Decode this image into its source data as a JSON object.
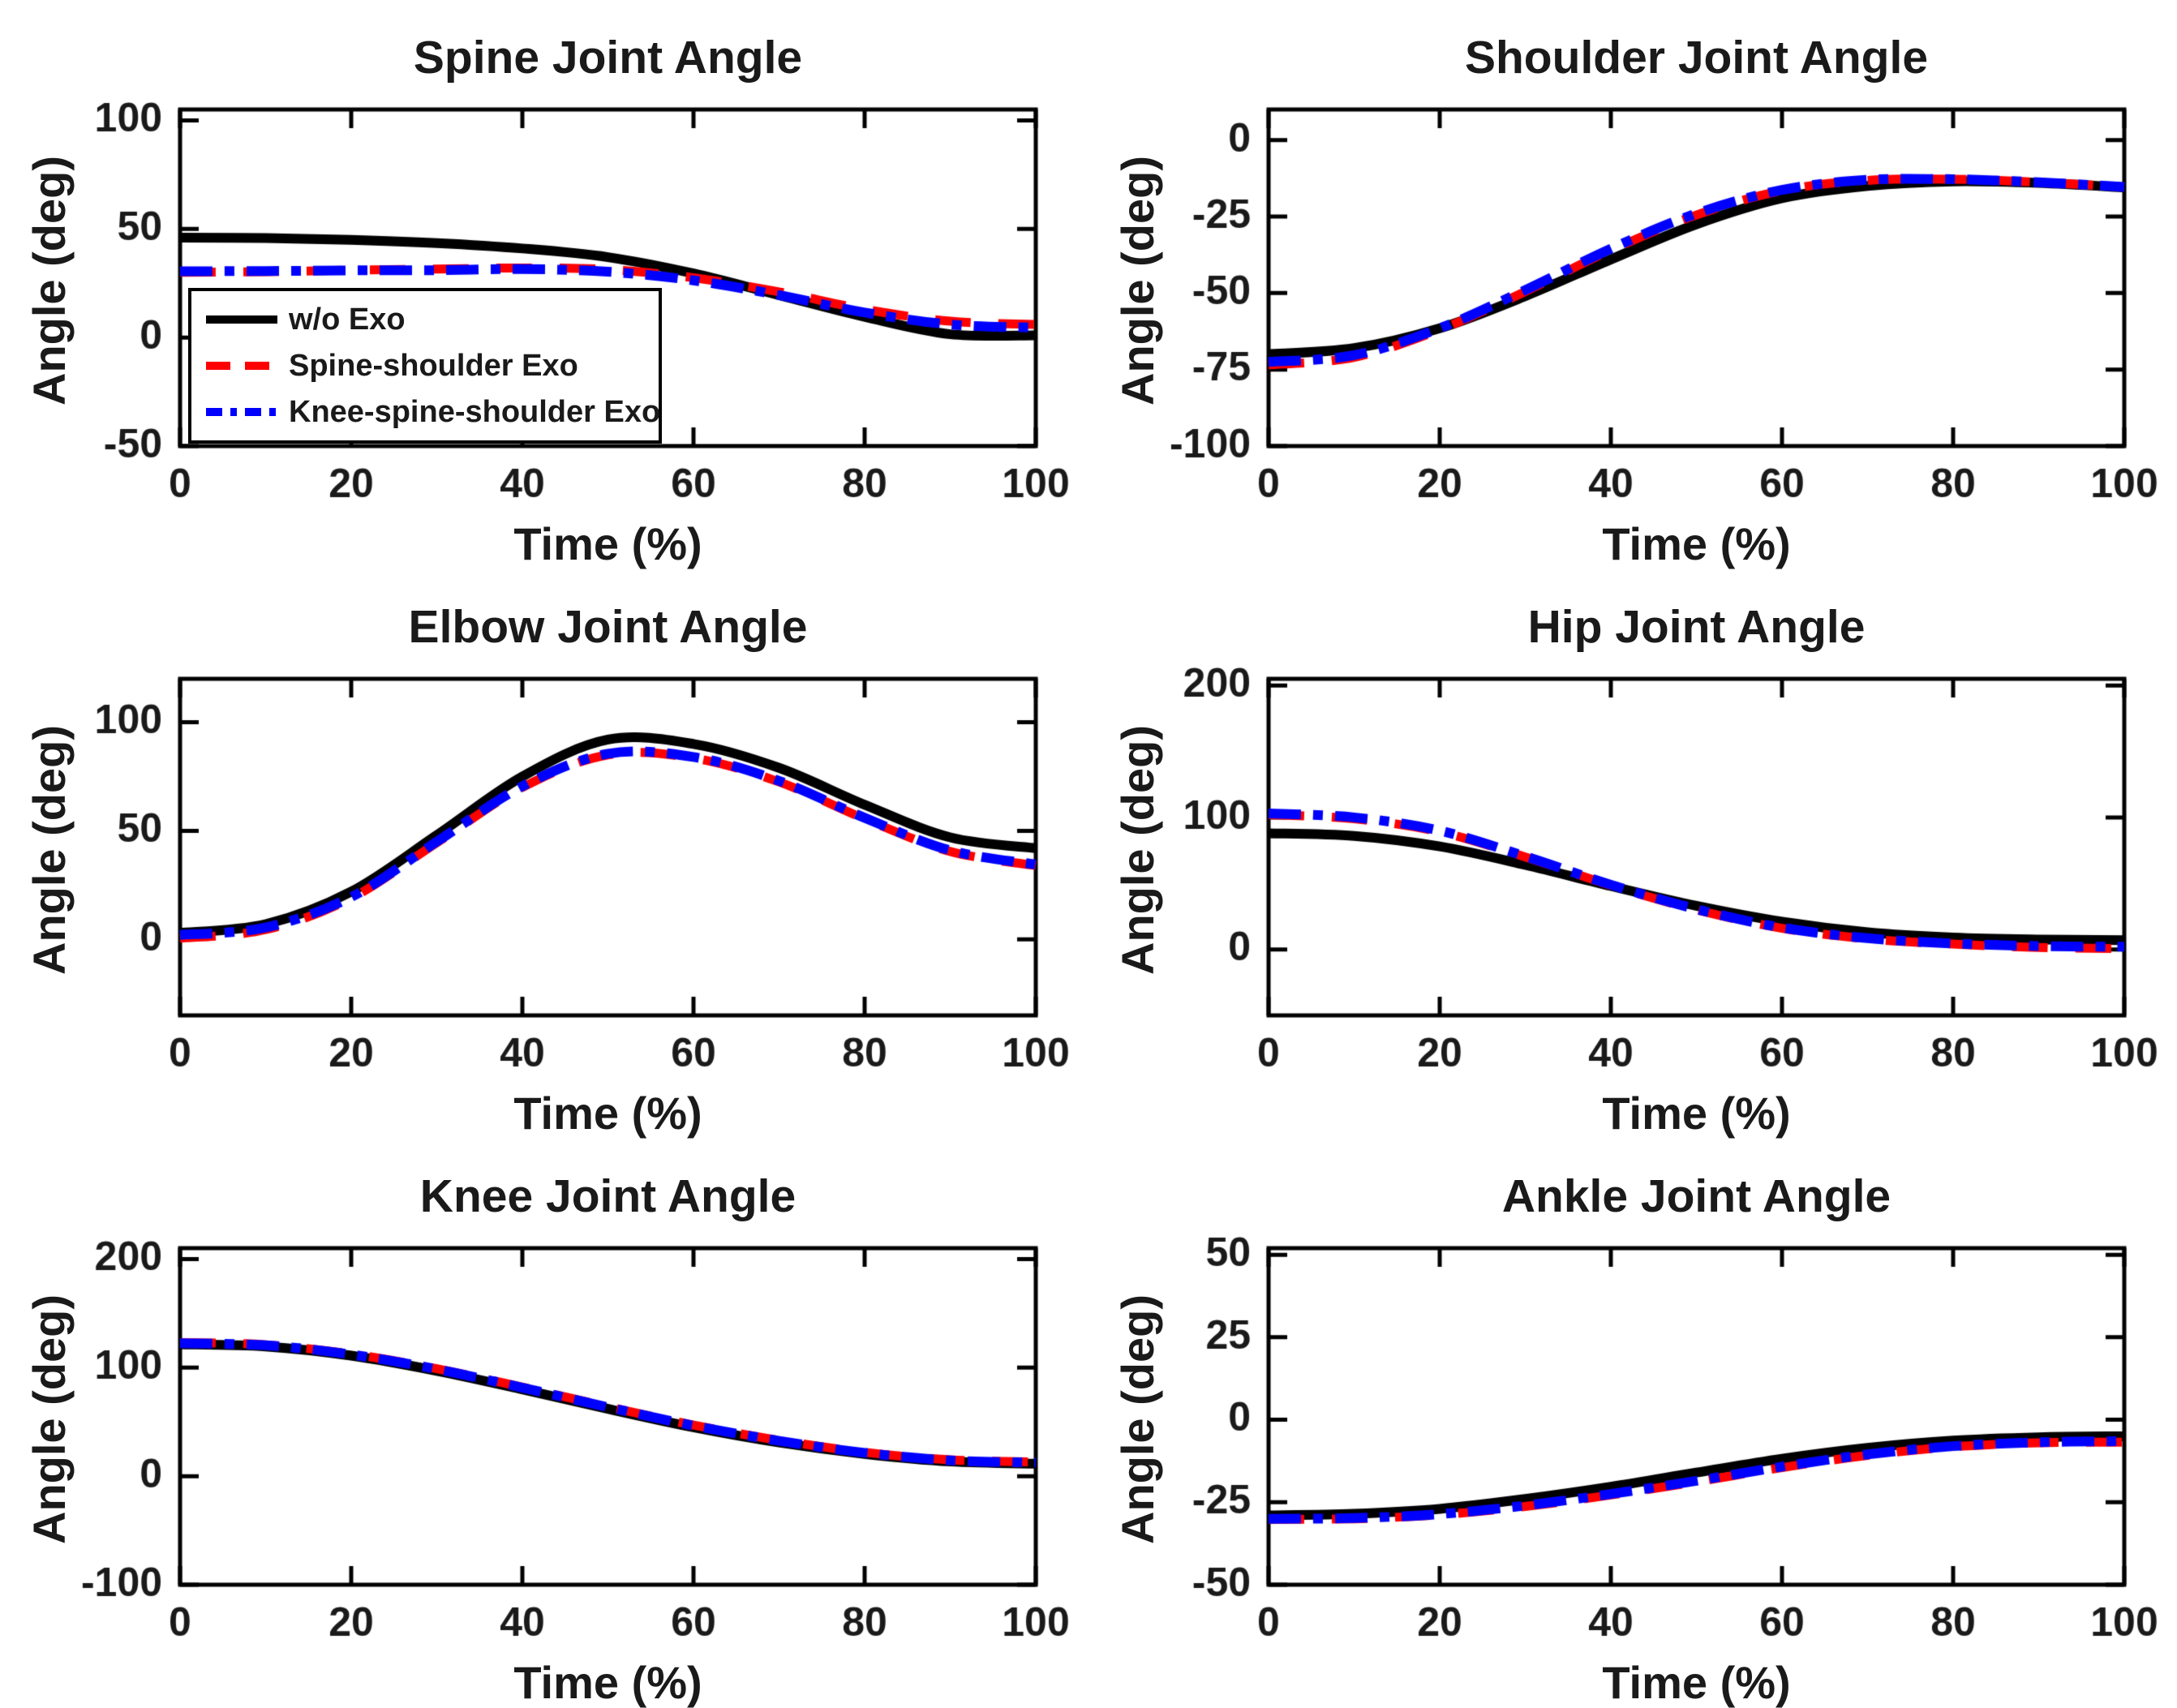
{
  "figure": {
    "background": "#ffffff",
    "text_color": "#1a1a1a",
    "axis_color": "#000000"
  },
  "legend": {
    "location": "spine-subplot-lower-left",
    "entries": [
      {
        "label": "w/o Exo",
        "color": "#000000",
        "style": "solid"
      },
      {
        "label": "Spine-shoulder Exo",
        "color": "#ff0000",
        "style": "dashed"
      },
      {
        "label": "Knee-spine-shoulder Exo",
        "color": "#0000ff",
        "style": "dashdot"
      }
    ]
  },
  "chart_data": [
    {
      "type": "line",
      "title": "Spine Joint Angle",
      "xlabel": "Time (%)",
      "ylabel": "Angle (deg)",
      "xlim": [
        0,
        100
      ],
      "ylim": [
        -50,
        105
      ],
      "xticks": [
        0,
        20,
        40,
        60,
        80,
        100
      ],
      "yticks": [
        100,
        50,
        0,
        -50
      ],
      "grid": false,
      "x": [
        0,
        10,
        20,
        30,
        40,
        50,
        60,
        70,
        80,
        90,
        100
      ],
      "series": [
        {
          "name": "w/o Exo",
          "color": "#000000",
          "style": "solid",
          "values": [
            46,
            45.8,
            45,
            43.5,
            41,
            37,
            29.5,
            19.5,
            9.5,
            1.5,
            1
          ]
        },
        {
          "name": "Spine-shoulder Exo",
          "color": "#ff0000",
          "style": "dashed",
          "values": [
            30,
            30.3,
            31,
            31.5,
            32,
            31.3,
            27.5,
            21,
            13,
            7.5,
            6
          ]
        },
        {
          "name": "Knee-spine-shoulder Exo",
          "color": "#0000ff",
          "style": "dashdot",
          "values": [
            30.5,
            30.6,
            30.9,
            31,
            31.5,
            30.3,
            26.3,
            19.5,
            11.5,
            6,
            4.5
          ]
        }
      ]
    },
    {
      "type": "line",
      "title": "Shoulder Joint Angle",
      "xlabel": "Time (%)",
      "ylabel": "Angle (deg)",
      "xlim": [
        0,
        100
      ],
      "ylim": [
        -100,
        10
      ],
      "xticks": [
        0,
        20,
        40,
        60,
        80,
        100
      ],
      "yticks": [
        0,
        -25,
        -50,
        -75,
        -100
      ],
      "grid": false,
      "x": [
        0,
        10,
        20,
        30,
        40,
        50,
        60,
        70,
        80,
        90,
        100
      ],
      "series": [
        {
          "name": "w/o Exo",
          "color": "#000000",
          "style": "solid",
          "values": [
            -70,
            -68,
            -61.5,
            -51,
            -39,
            -27.5,
            -19,
            -15,
            -13.5,
            -14,
            -15.5
          ]
        },
        {
          "name": "Spine-shoulder Exo",
          "color": "#ff0000",
          "style": "dashed",
          "values": [
            -73.5,
            -71,
            -62,
            -49.5,
            -36,
            -24.5,
            -16.5,
            -13.2,
            -12.8,
            -13.8,
            -15.3
          ]
        },
        {
          "name": "Knee-spine-shoulder Exo",
          "color": "#0000ff",
          "style": "dashdot",
          "values": [
            -72.5,
            -70.3,
            -61.5,
            -49,
            -35.5,
            -24,
            -16.3,
            -13,
            -12.8,
            -13.8,
            -15.3
          ]
        }
      ]
    },
    {
      "type": "line",
      "title": "Elbow Joint Angle",
      "xlabel": "Time (%)",
      "ylabel": "Angle (deg)",
      "xlim": [
        0,
        100
      ],
      "ylim": [
        -35,
        120
      ],
      "xticks": [
        0,
        20,
        40,
        60,
        80,
        100
      ],
      "yticks": [
        100,
        50,
        0
      ],
      "grid": false,
      "x": [
        0,
        10,
        20,
        30,
        40,
        50,
        60,
        70,
        80,
        90,
        100
      ],
      "series": [
        {
          "name": "w/o Exo",
          "color": "#000000",
          "style": "solid",
          "values": [
            3,
            7,
            22,
            48,
            75,
            92,
            90,
            79,
            62,
            47,
            42
          ]
        },
        {
          "name": "Spine-shoulder Exo",
          "color": "#ff0000",
          "style": "dashed",
          "values": [
            0.5,
            4.5,
            19,
            44.5,
            70,
            85,
            83.5,
            72.5,
            55.5,
            40.5,
            34
          ]
        },
        {
          "name": "Knee-spine-shoulder Exo",
          "color": "#0000ff",
          "style": "dashdot",
          "values": [
            2,
            5.5,
            19.5,
            45,
            70.5,
            85.5,
            84,
            73,
            56,
            41,
            34.5
          ]
        }
      ]
    },
    {
      "type": "line",
      "title": "Hip Joint Angle",
      "xlabel": "Time (%)",
      "ylabel": "Angle (deg)",
      "xlim": [
        0,
        100
      ],
      "ylim": [
        -50,
        205
      ],
      "xticks": [
        0,
        20,
        40,
        60,
        80,
        100
      ],
      "yticks": [
        200,
        100,
        0
      ],
      "grid": false,
      "x": [
        0,
        10,
        20,
        30,
        40,
        50,
        60,
        70,
        80,
        90,
        100
      ],
      "series": [
        {
          "name": "w/o Exo",
          "color": "#000000",
          "style": "solid",
          "values": [
            88,
            86,
            78,
            64,
            48,
            33,
            21,
            13,
            9,
            7.5,
            7
          ]
        },
        {
          "name": "Spine-shoulder Exo",
          "color": "#ff0000",
          "style": "dashed",
          "values": [
            102,
            99,
            89,
            70,
            48.5,
            30,
            16,
            8,
            4,
            1.5,
            0.5
          ]
        },
        {
          "name": "Knee-spine-shoulder Exo",
          "color": "#0000ff",
          "style": "dashdot",
          "values": [
            103,
            100,
            90,
            70.5,
            49,
            30.5,
            16.5,
            8.5,
            4.5,
            2.5,
            2
          ]
        }
      ]
    },
    {
      "type": "line",
      "title": "Knee Joint Angle",
      "xlabel": "Time (%)",
      "ylabel": "Angle (deg)",
      "xlim": [
        0,
        100
      ],
      "ylim": [
        -100,
        210
      ],
      "xticks": [
        0,
        20,
        40,
        60,
        80,
        100
      ],
      "yticks": [
        200,
        100,
        0,
        -100
      ],
      "grid": false,
      "x": [
        0,
        10,
        20,
        30,
        40,
        50,
        60,
        70,
        80,
        90,
        100
      ],
      "series": [
        {
          "name": "w/o Exo",
          "color": "#000000",
          "style": "solid",
          "values": [
            121.5,
            119.5,
            111,
            97,
            80,
            62,
            45,
            31,
            20.5,
            13.5,
            11.5
          ]
        },
        {
          "name": "Spine-shoulder Exo",
          "color": "#ff0000",
          "style": "dashed",
          "values": [
            123,
            121,
            112.5,
            99,
            82,
            64,
            47,
            33,
            22,
            15,
            13
          ]
        },
        {
          "name": "Knee-spine-shoulder Exo",
          "color": "#0000ff",
          "style": "dashdot",
          "values": [
            122.5,
            120.5,
            112,
            98.5,
            81.5,
            63.5,
            46.5,
            32.5,
            21.5,
            14.5,
            12.5
          ]
        }
      ]
    },
    {
      "type": "line",
      "title": "Ankle Joint Angle",
      "xlabel": "Time (%)",
      "ylabel": "Angle (deg)",
      "xlim": [
        0,
        100
      ],
      "ylim": [
        -50,
        52
      ],
      "xticks": [
        0,
        20,
        40,
        60,
        80,
        100
      ],
      "yticks": [
        50,
        25,
        0,
        -25,
        -50
      ],
      "grid": false,
      "x": [
        0,
        10,
        20,
        30,
        40,
        50,
        60,
        70,
        80,
        90,
        100
      ],
      "series": [
        {
          "name": "w/o Exo",
          "color": "#000000",
          "style": "solid",
          "values": [
            -29,
            -28.5,
            -27,
            -24,
            -20.3,
            -16,
            -11.8,
            -8.5,
            -6.3,
            -5.3,
            -5
          ]
        },
        {
          "name": "Spine-shoulder Exo",
          "color": "#ff0000",
          "style": "dashed",
          "values": [
            -30.2,
            -30,
            -28.8,
            -26.3,
            -22.8,
            -18.8,
            -14.5,
            -10.8,
            -8.2,
            -7,
            -6.8
          ]
        },
        {
          "name": "Knee-spine-shoulder Exo",
          "color": "#0000ff",
          "style": "dashdot",
          "values": [
            -30,
            -29.8,
            -28.6,
            -26,
            -22.5,
            -18.5,
            -14.2,
            -10.5,
            -8,
            -6.8,
            -6.5
          ]
        }
      ]
    }
  ]
}
